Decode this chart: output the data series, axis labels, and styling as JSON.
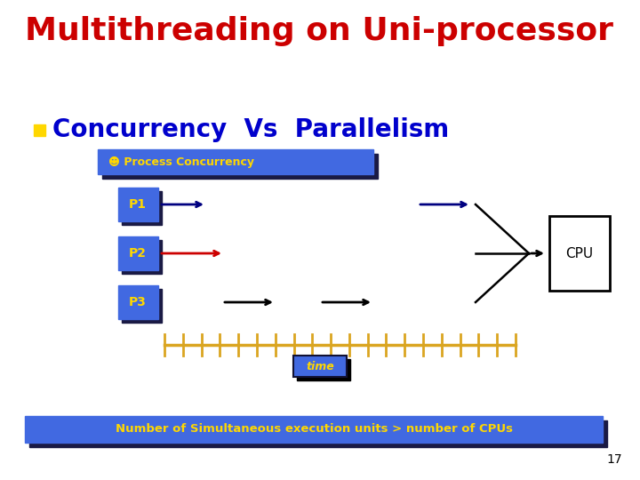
{
  "title": "Multithreading on Uni-processor",
  "title_color": "#CC0000",
  "title_fontsize": 26,
  "subtitle": "Concurrency  Vs  Parallelism",
  "subtitle_color": "#0000CC",
  "subtitle_fontsize": 20,
  "bullet_color": "#FFD700",
  "bg_color": "#FFFFFF",
  "process_label_color": "#FFD700",
  "process_bg": "#4169E1",
  "process_shadow": "#1a1a44",
  "processes": [
    "P1",
    "P2",
    "P3"
  ],
  "p1_arrow_color": "#000080",
  "p2_arrow_color": "#CC0000",
  "p3_arrow_color": "#000000",
  "cpu_box_color": "#FFFFFF",
  "cpu_text_color": "#000000",
  "time_label_color": "#FFD700",
  "time_bg_color": "#4169E1",
  "time_shadow": "#000000",
  "bottom_bar_color": "#4169E1",
  "bottom_shadow": "#1a1a44",
  "bottom_text": "Number of Simultaneous execution units > number of CPUs",
  "bottom_text_color": "#FFD700",
  "page_number": "17",
  "concurrency_banner_color": "#4169E1",
  "concurrency_shadow": "#1a1a44",
  "concurrency_text": "☻ Process Concurrency",
  "concurrency_text_color": "#FFD700",
  "timeline_color": "#DAA520",
  "merger_color": "#000000"
}
